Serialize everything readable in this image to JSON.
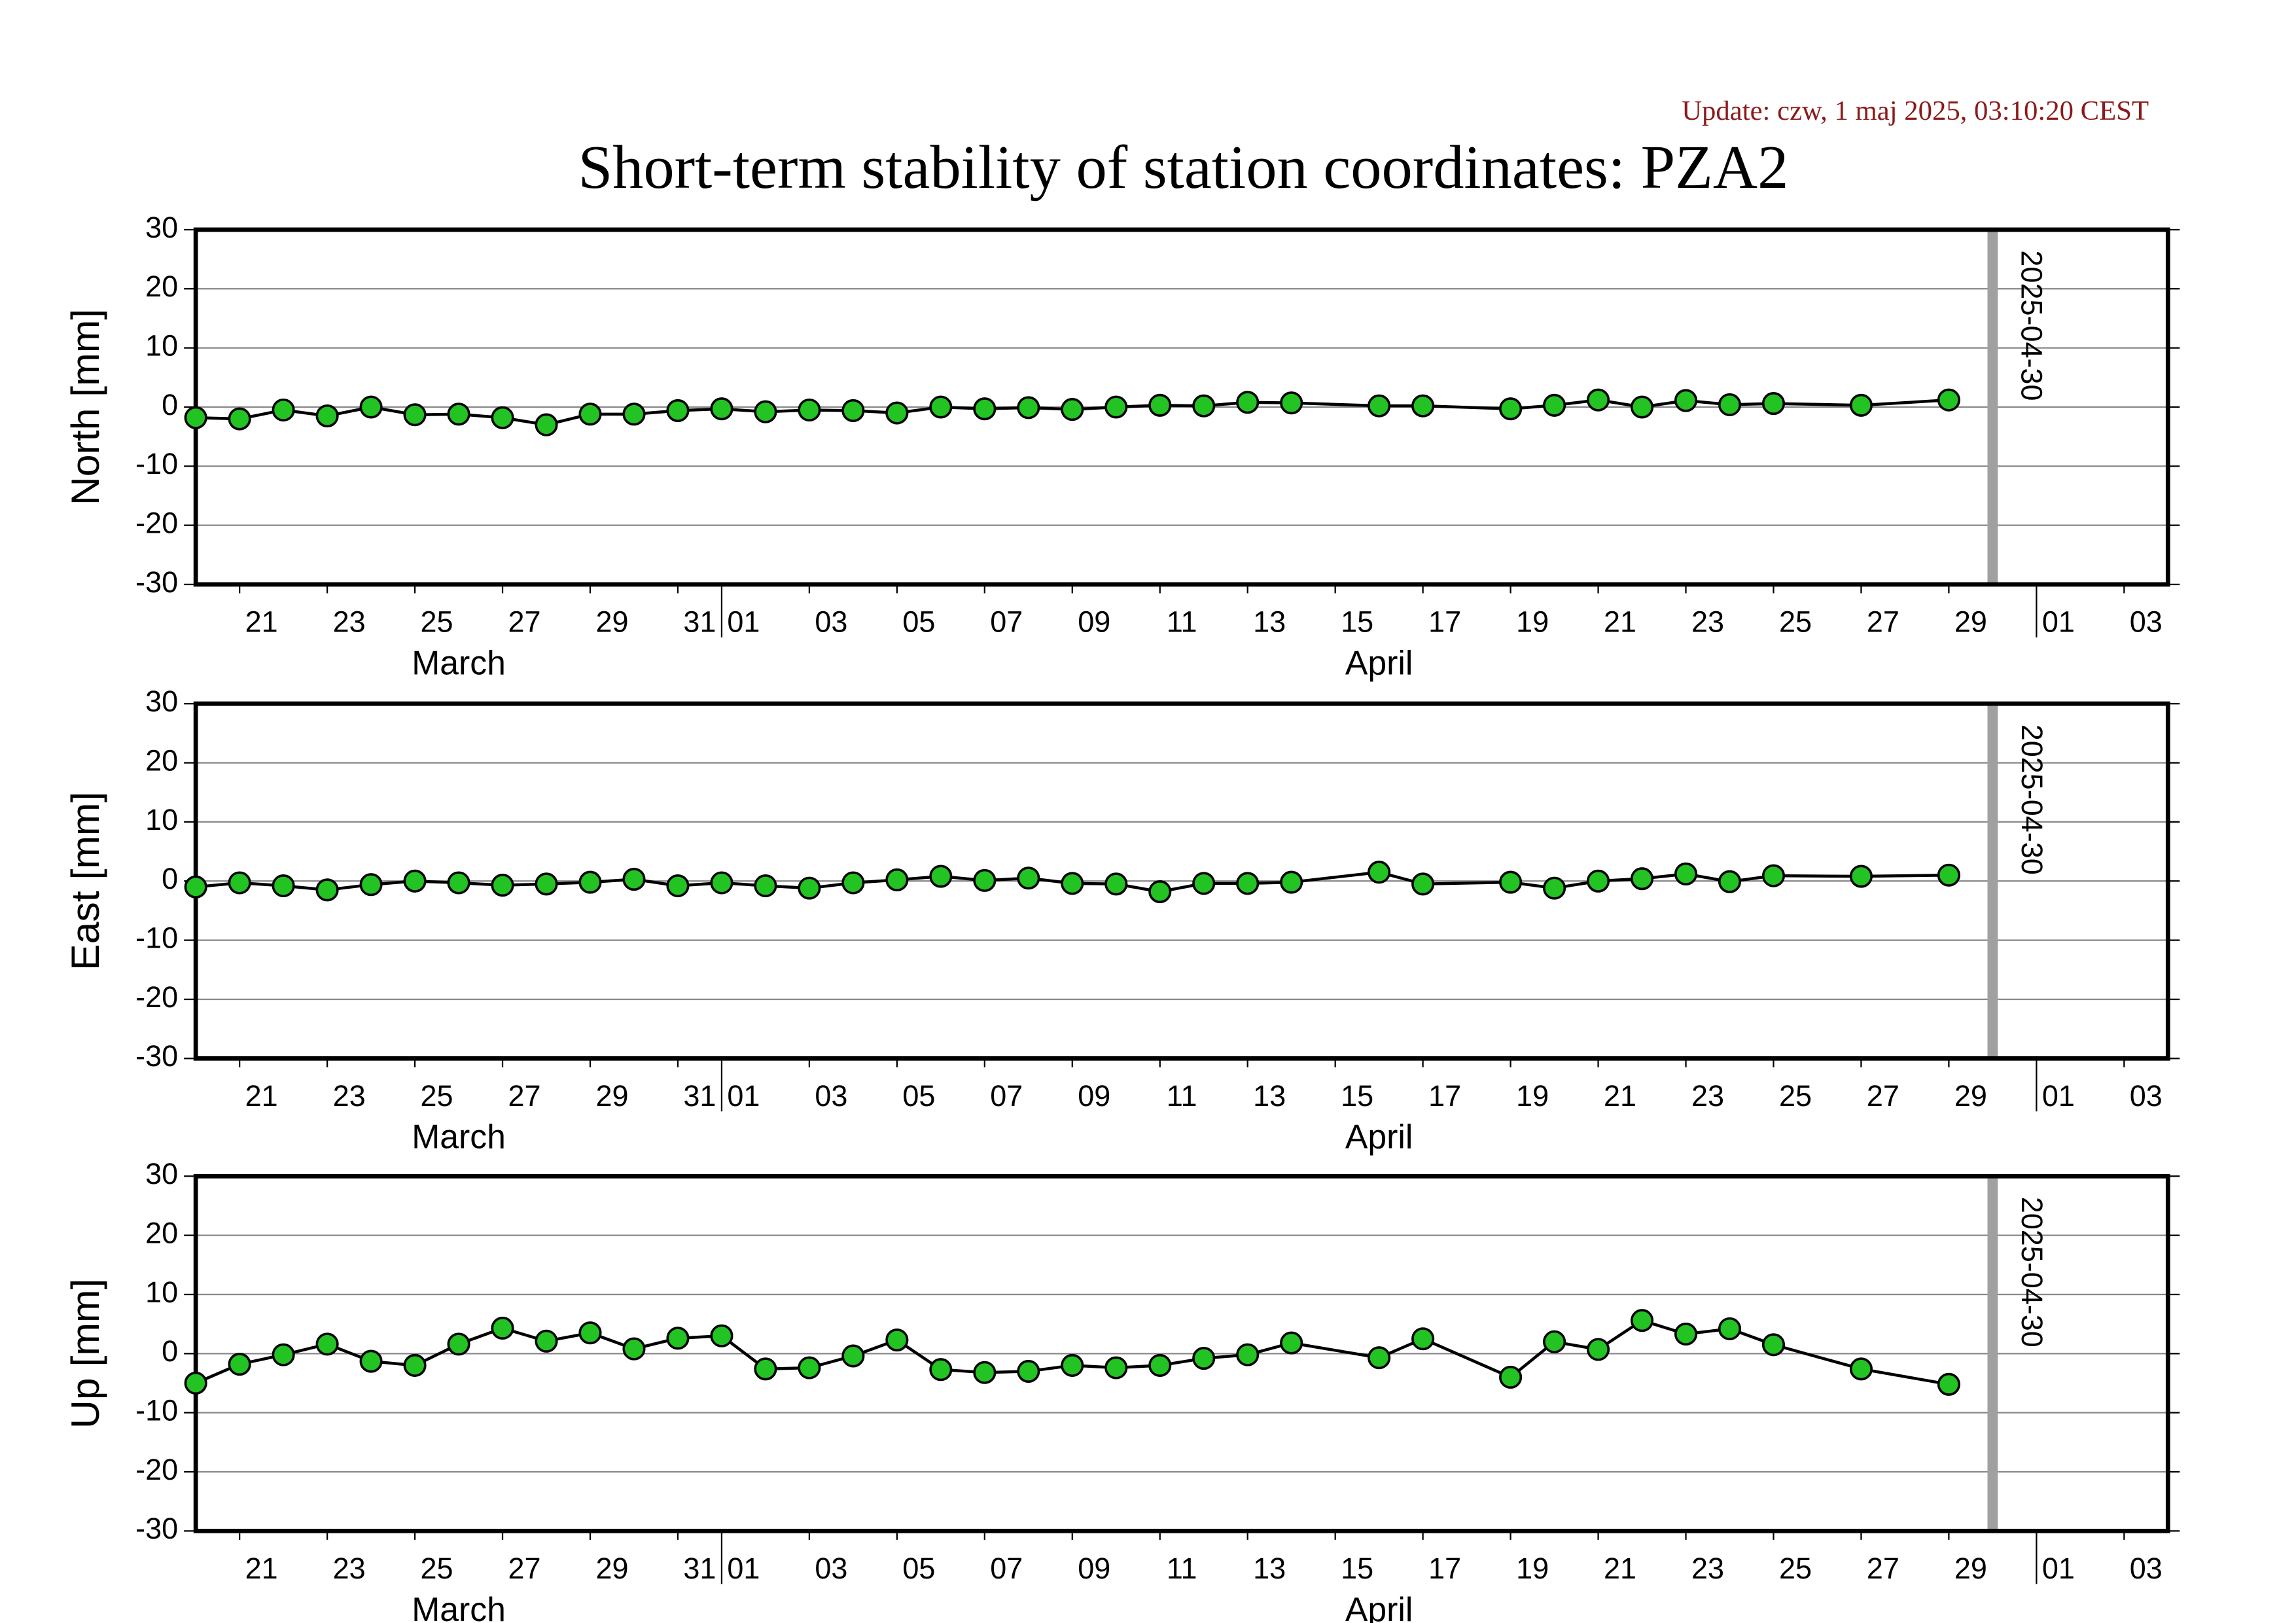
{
  "update": "Update: czw, 1 maj 2025, 03:10:20 CEST",
  "title": "Short-term stability of station coordinates: PZA2",
  "chart_data": [
    {
      "type": "line",
      "ylabel": "North [mm]",
      "x": [
        "03-20",
        "03-21",
        "03-22",
        "03-23",
        "03-24",
        "03-25",
        "03-26",
        "03-27",
        "03-28",
        "03-29",
        "03-30",
        "03-31",
        "04-01",
        "04-02",
        "04-03",
        "04-04",
        "04-05",
        "04-06",
        "04-07",
        "04-08",
        "04-09",
        "04-10",
        "04-11",
        "04-12",
        "04-13",
        "04-14",
        "04-16",
        "04-17",
        "04-19",
        "04-20",
        "04-21",
        "04-22",
        "04-23",
        "04-24",
        "04-25",
        "04-27",
        "04-29"
      ],
      "values": [
        -1.8,
        -2,
        -0.5,
        -1.5,
        0,
        -1.3,
        -1.2,
        -1.8,
        -3,
        -1.2,
        -1.2,
        -0.6,
        -0.3,
        -0.8,
        -0.5,
        -0.6,
        -1,
        0,
        -0.3,
        -0.1,
        -0.4,
        0,
        0.3,
        0.2,
        0.8,
        0.7,
        0.2,
        0.2,
        -0.3,
        0.3,
        1.2,
        0,
        1.1,
        0.4,
        0.6,
        0.3,
        1.2
      ],
      "color": "#22c322",
      "line_color": "#000000",
      "xlim": [
        "03-20",
        "05-04"
      ],
      "xticks": [
        {
          "value": "03-21",
          "label": "21"
        },
        {
          "value": "03-23",
          "label": "23"
        },
        {
          "value": "03-25",
          "label": "25"
        },
        {
          "value": "03-27",
          "label": "27"
        },
        {
          "value": "03-29",
          "label": "29"
        },
        {
          "value": "03-31",
          "label": "31"
        },
        {
          "value": "04-01",
          "label": "01"
        },
        {
          "value": "04-03",
          "label": "03"
        },
        {
          "value": "04-05",
          "label": "05"
        },
        {
          "value": "04-07",
          "label": "07"
        },
        {
          "value": "04-09",
          "label": "09"
        },
        {
          "value": "04-11",
          "label": "11"
        },
        {
          "value": "04-13",
          "label": "13"
        },
        {
          "value": "04-15",
          "label": "15"
        },
        {
          "value": "04-17",
          "label": "17"
        },
        {
          "value": "04-19",
          "label": "19"
        },
        {
          "value": "04-21",
          "label": "21"
        },
        {
          "value": "04-23",
          "label": "23"
        },
        {
          "value": "04-25",
          "label": "25"
        },
        {
          "value": "04-27",
          "label": "27"
        },
        {
          "value": "04-29",
          "label": "29"
        },
        {
          "value": "05-01",
          "label": "01"
        },
        {
          "value": "05-03",
          "label": "03"
        }
      ],
      "months": [
        {
          "value": "03-01",
          "label": "March"
        },
        {
          "value": "04-01",
          "label": "April"
        }
      ],
      "ylim": [
        -30,
        30
      ],
      "yticks": [
        -30,
        -20,
        -10,
        0,
        10,
        20,
        30
      ],
      "grid": true,
      "vline": {
        "x": "04-30",
        "label": "2025-04-30",
        "color": "#a0a0a0"
      }
    },
    {
      "type": "line",
      "ylabel": "East [mm]",
      "x": [
        "03-20",
        "03-21",
        "03-22",
        "03-23",
        "03-24",
        "03-25",
        "03-26",
        "03-27",
        "03-28",
        "03-29",
        "03-30",
        "03-31",
        "04-01",
        "04-02",
        "04-03",
        "04-04",
        "04-05",
        "04-06",
        "04-07",
        "04-08",
        "04-09",
        "04-10",
        "04-11",
        "04-12",
        "04-13",
        "04-14",
        "04-16",
        "04-17",
        "04-19",
        "04-20",
        "04-21",
        "04-22",
        "04-23",
        "04-24",
        "04-25",
        "04-27",
        "04-29"
      ],
      "values": [
        -1,
        -0.3,
        -0.8,
        -1.5,
        -0.6,
        0,
        -0.3,
        -0.7,
        -0.5,
        -0.2,
        0.3,
        -0.8,
        -0.3,
        -0.8,
        -1.2,
        -0.3,
        0.2,
        0.8,
        0.1,
        0.5,
        -0.4,
        -0.5,
        -1.8,
        -0.4,
        -0.4,
        -0.2,
        1.5,
        -0.5,
        -0.2,
        -1.2,
        0,
        0.4,
        1.2,
        -0.1,
        0.9,
        0.8,
        1
      ],
      "color": "#22c322",
      "line_color": "#000000",
      "xlim": [
        "03-20",
        "05-04"
      ],
      "xticks": [
        {
          "value": "03-21",
          "label": "21"
        },
        {
          "value": "03-23",
          "label": "23"
        },
        {
          "value": "03-25",
          "label": "25"
        },
        {
          "value": "03-27",
          "label": "27"
        },
        {
          "value": "03-29",
          "label": "29"
        },
        {
          "value": "03-31",
          "label": "31"
        },
        {
          "value": "04-01",
          "label": "01"
        },
        {
          "value": "04-03",
          "label": "03"
        },
        {
          "value": "04-05",
          "label": "05"
        },
        {
          "value": "04-07",
          "label": "07"
        },
        {
          "value": "04-09",
          "label": "09"
        },
        {
          "value": "04-11",
          "label": "11"
        },
        {
          "value": "04-13",
          "label": "13"
        },
        {
          "value": "04-15",
          "label": "15"
        },
        {
          "value": "04-17",
          "label": "17"
        },
        {
          "value": "04-19",
          "label": "19"
        },
        {
          "value": "04-21",
          "label": "21"
        },
        {
          "value": "04-23",
          "label": "23"
        },
        {
          "value": "04-25",
          "label": "25"
        },
        {
          "value": "04-27",
          "label": "27"
        },
        {
          "value": "04-29",
          "label": "29"
        },
        {
          "value": "05-01",
          "label": "01"
        },
        {
          "value": "05-03",
          "label": "03"
        }
      ],
      "months": [
        {
          "value": "03-01",
          "label": "March"
        },
        {
          "value": "04-01",
          "label": "April"
        }
      ],
      "ylim": [
        -30,
        30
      ],
      "yticks": [
        -30,
        -20,
        -10,
        0,
        10,
        20,
        30
      ],
      "grid": true,
      "vline": {
        "x": "04-30",
        "label": "2025-04-30",
        "color": "#a0a0a0"
      }
    },
    {
      "type": "line",
      "ylabel": "Up [mm]",
      "x": [
        "03-20",
        "03-21",
        "03-22",
        "03-23",
        "03-24",
        "03-25",
        "03-26",
        "03-27",
        "03-28",
        "03-29",
        "03-30",
        "03-31",
        "04-01",
        "04-02",
        "04-03",
        "04-04",
        "04-05",
        "04-06",
        "04-07",
        "04-08",
        "04-09",
        "04-10",
        "04-11",
        "04-12",
        "04-13",
        "04-14",
        "04-16",
        "04-17",
        "04-19",
        "04-20",
        "04-21",
        "04-22",
        "04-23",
        "04-24",
        "04-25",
        "04-27",
        "04-29"
      ],
      "values": [
        -5,
        -1.8,
        -0.2,
        1.6,
        -1.3,
        -2,
        1.6,
        4.3,
        2.1,
        3.5,
        0.8,
        2.6,
        3,
        -2.6,
        -2.4,
        -0.4,
        2.3,
        -2.7,
        -3.2,
        -3,
        -2,
        -2.4,
        -2,
        -0.8,
        -0.2,
        1.8,
        -0.7,
        2.5,
        -4,
        2,
        0.7,
        5.6,
        3.3,
        4.2,
        1.5,
        -2.6,
        -5.2
      ],
      "color": "#22c322",
      "line_color": "#000000",
      "xlim": [
        "03-20",
        "05-04"
      ],
      "xticks": [
        {
          "value": "03-21",
          "label": "21"
        },
        {
          "value": "03-23",
          "label": "23"
        },
        {
          "value": "03-25",
          "label": "25"
        },
        {
          "value": "03-27",
          "label": "27"
        },
        {
          "value": "03-29",
          "label": "29"
        },
        {
          "value": "03-31",
          "label": "31"
        },
        {
          "value": "04-01",
          "label": "01"
        },
        {
          "value": "04-03",
          "label": "03"
        },
        {
          "value": "04-05",
          "label": "05"
        },
        {
          "value": "04-07",
          "label": "07"
        },
        {
          "value": "04-09",
          "label": "09"
        },
        {
          "value": "04-11",
          "label": "11"
        },
        {
          "value": "04-13",
          "label": "13"
        },
        {
          "value": "04-15",
          "label": "15"
        },
        {
          "value": "04-17",
          "label": "17"
        },
        {
          "value": "04-19",
          "label": "19"
        },
        {
          "value": "04-21",
          "label": "21"
        },
        {
          "value": "04-23",
          "label": "23"
        },
        {
          "value": "04-25",
          "label": "25"
        },
        {
          "value": "04-27",
          "label": "27"
        },
        {
          "value": "04-29",
          "label": "29"
        },
        {
          "value": "05-01",
          "label": "01"
        },
        {
          "value": "05-03",
          "label": "03"
        }
      ],
      "months": [
        {
          "value": "03-01",
          "label": "March"
        },
        {
          "value": "04-01",
          "label": "April"
        }
      ],
      "ylim": [
        -30,
        30
      ],
      "yticks": [
        -30,
        -20,
        -10,
        0,
        10,
        20,
        30
      ],
      "grid": true,
      "vline": {
        "x": "04-30",
        "label": "2025-04-30",
        "color": "#a0a0a0"
      }
    }
  ]
}
